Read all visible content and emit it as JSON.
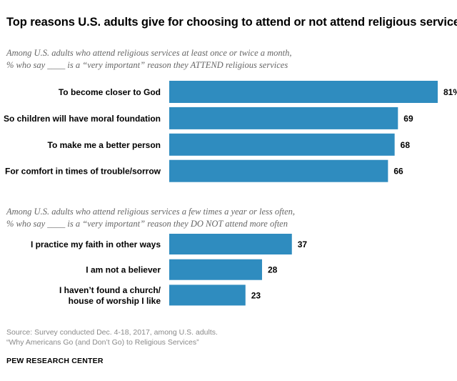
{
  "title": "Top reasons U.S. adults give for choosing to attend or not attend religious services",
  "colors": {
    "bar": "#2f8cbf",
    "label": "#000000",
    "note": "#666666"
  },
  "chart_data": [
    {
      "type": "bar",
      "orientation": "horizontal",
      "subtitle_line1": "Among U.S. adults who attend religious services at least once or twice a month,",
      "subtitle_line2": "% who say ____ is a “very important” reason they ATTEND religious services",
      "categories": [
        [
          "To become closer to God"
        ],
        [
          "So children will have moral foundation"
        ],
        [
          "To make me a better person"
        ],
        [
          "For comfort in times of trouble/sorrow"
        ]
      ],
      "values": [
        81,
        69,
        68,
        66
      ],
      "value_labels": [
        "81%",
        "69",
        "68",
        "66"
      ],
      "xlim": [
        0,
        100
      ]
    },
    {
      "type": "bar",
      "orientation": "horizontal",
      "subtitle_line1": "Among U.S. adults who attend religious services a few times a year or less often,",
      "subtitle_line2": "% who say ____ is a “very important” reason they DO NOT attend more often",
      "categories": [
        [
          "I practice my faith in other ways"
        ],
        [
          "I am not a believer"
        ],
        [
          "I haven’t found a church/",
          "house of worship I like"
        ]
      ],
      "values": [
        37,
        28,
        23
      ],
      "value_labels": [
        "37",
        "28",
        "23"
      ],
      "xlim": [
        0,
        100
      ]
    }
  ],
  "source_line1": "Source: Survey conducted Dec. 4-18, 2017, among U.S. adults.",
  "source_line2": "“Why Americans Go (and Don’t Go) to Religious Services”",
  "brand": "PEW RESEARCH CENTER"
}
